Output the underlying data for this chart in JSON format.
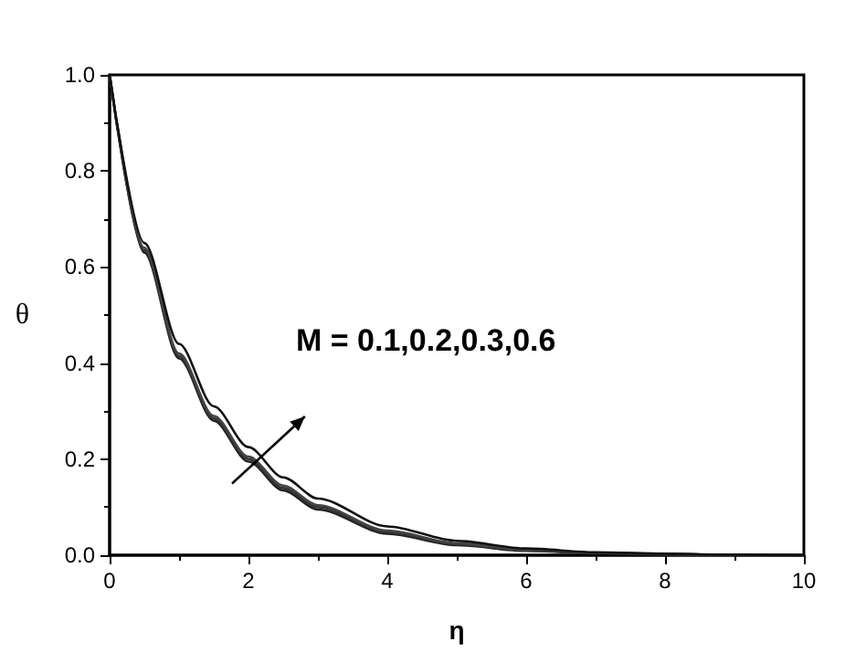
{
  "chart_data": {
    "type": "line",
    "xlabel": "η",
    "ylabel": "θ",
    "annotations": [
      "M = 0.1,0.2,0.3,0.6"
    ],
    "x": [
      0,
      0.5,
      1,
      1.5,
      2,
      2.5,
      3,
      4,
      5,
      6,
      7,
      8,
      9,
      10
    ],
    "series": [
      {
        "color": "#222222",
        "values": [
          1,
          0.63,
          0.41,
          0.28,
          0.195,
          0.135,
          0.095,
          0.045,
          0.021,
          0.009,
          0.004,
          0.002,
          0.001,
          0
        ]
      },
      {
        "color": "#333333",
        "values": [
          1,
          0.635,
          0.415,
          0.285,
          0.2,
          0.14,
          0.1,
          0.048,
          0.023,
          0.01,
          0.005,
          0.002,
          0.001,
          0
        ]
      },
      {
        "color": "#444444",
        "values": [
          1,
          0.64,
          0.42,
          0.29,
          0.205,
          0.145,
          0.104,
          0.051,
          0.025,
          0.011,
          0.005,
          0.002,
          0.001,
          0
        ]
      },
      {
        "color": "#111111",
        "values": [
          1,
          0.65,
          0.44,
          0.31,
          0.225,
          0.162,
          0.118,
          0.06,
          0.03,
          0.014,
          0.006,
          0.003,
          0.001,
          0
        ]
      }
    ],
    "xlim": [
      0,
      10
    ],
    "xticks": [
      0,
      2,
      4,
      6,
      8,
      10
    ],
    "ylim": [
      0,
      1
    ],
    "yticks": [
      {
        "value": 0,
        "label": "0.0"
      },
      {
        "value": 0.2,
        "label": "0.2"
      },
      {
        "value": 0.4,
        "label": "0.4"
      },
      {
        "value": 0.6,
        "label": "0.6"
      },
      {
        "value": 0.8,
        "label": "0.8"
      },
      {
        "value": 1,
        "label": "1.0"
      }
    ],
    "grid": false,
    "marker": "none",
    "line_style": "solid"
  }
}
